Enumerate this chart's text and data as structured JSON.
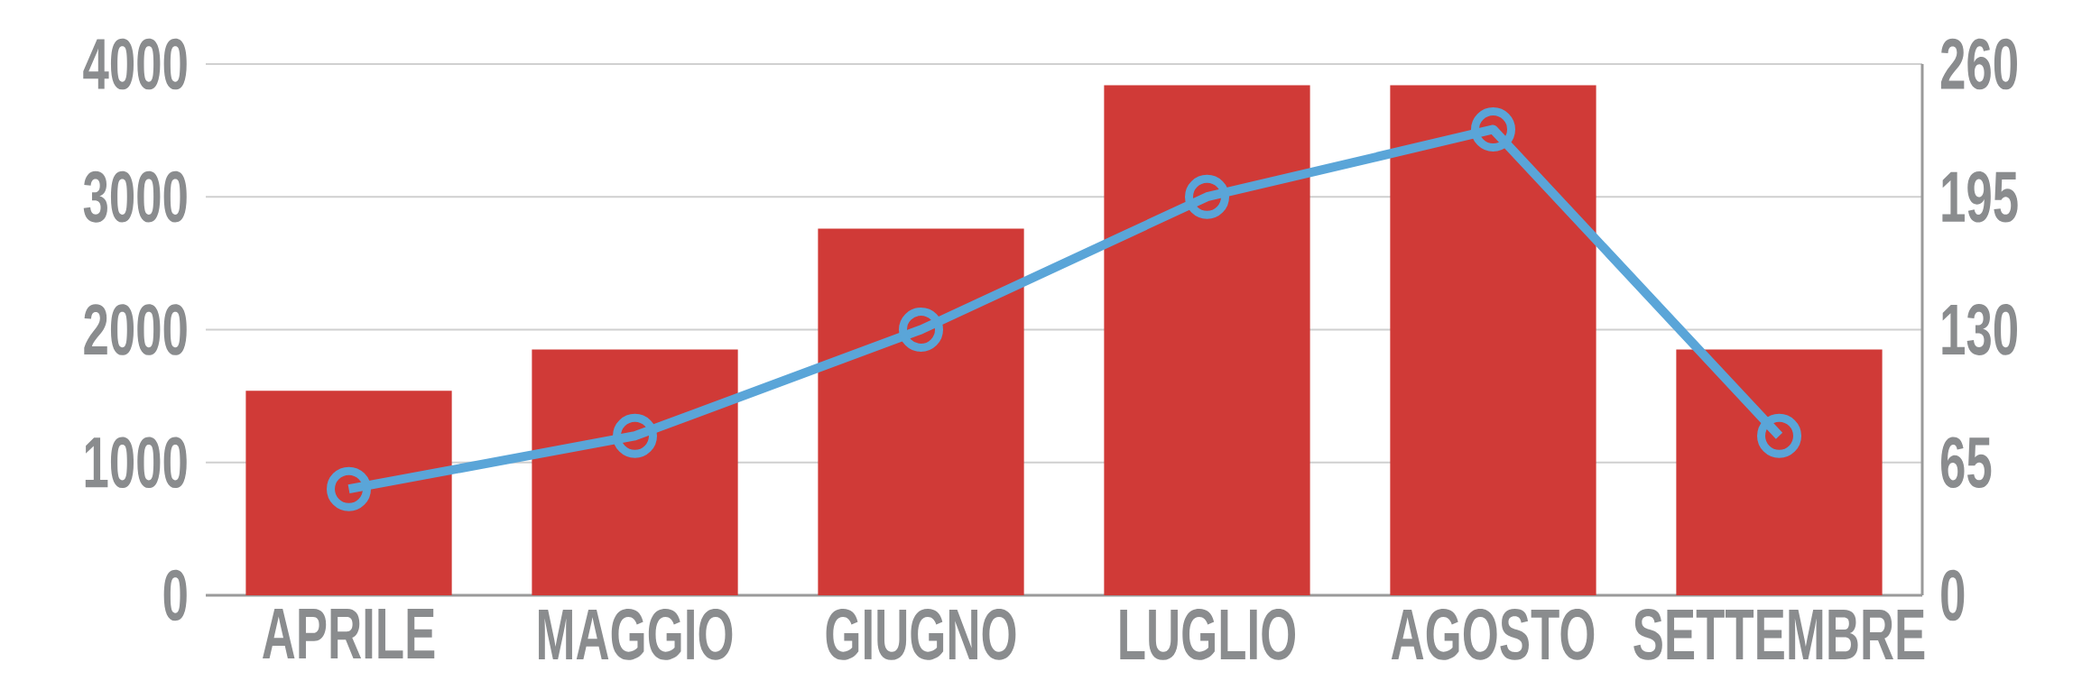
{
  "chart_data": {
    "type": "bar",
    "categories": [
      "APRILE",
      "MAGGIO",
      "GIUGNO",
      "LUGLIO",
      "AGOSTO",
      "SETTEMBRE"
    ],
    "series": [
      {
        "color": "#d03a37",
        "values": [
          1540,
          1850,
          2760,
          3840,
          3840,
          1850
        ]
      },
      {
        "type": "line",
        "axis": "y2",
        "color": "#5aa5d8",
        "marker": "circle",
        "values": [
          52,
          78,
          130,
          195,
          228,
          78
        ]
      }
    ],
    "ylim": [
      0,
      4000
    ],
    "yticks": [
      0,
      1000,
      2000,
      3000,
      4000
    ],
    "y2lim": [
      0,
      260
    ],
    "y2ticks": [
      0,
      65,
      130,
      195,
      260
    ],
    "grid": "y"
  }
}
